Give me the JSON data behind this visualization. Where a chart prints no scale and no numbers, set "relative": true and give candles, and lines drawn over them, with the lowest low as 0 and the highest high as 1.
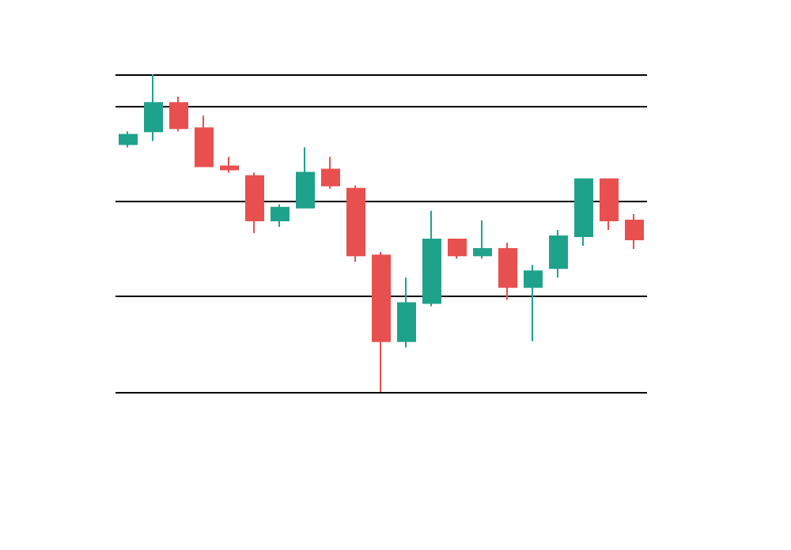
{
  "chart_data": {
    "type": "candlestick",
    "relative": true,
    "grid": "y",
    "categories": [
      null,
      null,
      null,
      null,
      null,
      null,
      null,
      null,
      null,
      null,
      null,
      null,
      null,
      null,
      null,
      null,
      null,
      null,
      null,
      null,
      null
    ],
    "ohlc": [
      [
        0.78,
        0.82,
        0.77,
        0.81
      ],
      [
        0.82,
        1.0,
        0.79,
        0.91
      ],
      [
        0.91,
        0.93,
        0.82,
        0.83
      ],
      [
        0.83,
        0.87,
        0.71,
        0.71
      ],
      [
        0.71,
        0.74,
        0.69,
        0.7
      ],
      [
        0.68,
        0.69,
        0.5,
        0.54
      ],
      [
        0.54,
        0.59,
        0.52,
        0.58
      ],
      [
        0.58,
        0.77,
        0.58,
        0.69
      ],
      [
        0.7,
        0.74,
        0.64,
        0.65
      ],
      [
        0.64,
        0.65,
        0.41,
        0.43
      ],
      [
        0.43,
        0.44,
        0.0,
        0.16
      ],
      [
        0.16,
        0.36,
        0.14,
        0.28
      ],
      [
        0.28,
        0.57,
        0.27,
        0.48
      ],
      [
        0.48,
        0.48,
        0.42,
        0.43
      ],
      [
        0.43,
        0.54,
        0.42,
        0.45
      ],
      [
        0.45,
        0.47,
        0.29,
        0.33
      ],
      [
        0.33,
        0.4,
        0.16,
        0.38
      ],
      [
        0.39,
        0.51,
        0.36,
        0.49
      ],
      [
        0.49,
        0.67,
        0.46,
        0.67
      ],
      [
        0.67,
        0.67,
        0.51,
        0.54
      ],
      [
        0.54,
        0.56,
        0.45,
        0.48
      ]
    ],
    "colors": [
      "#1fa28c",
      "#1fa28c",
      "#e8504f",
      "#e8504f",
      "#e8504f",
      "#e8504f",
      "#1fa28c",
      "#1fa28c",
      "#e8504f",
      "#e8504f",
      "#e8504f",
      "#1fa28c",
      "#1fa28c",
      "#e8504f",
      "#1fa28c",
      "#e8504f",
      "#1fa28c",
      "#1fa28c",
      "#1fa28c",
      "#e8504f",
      "#e8504f"
    ]
  }
}
